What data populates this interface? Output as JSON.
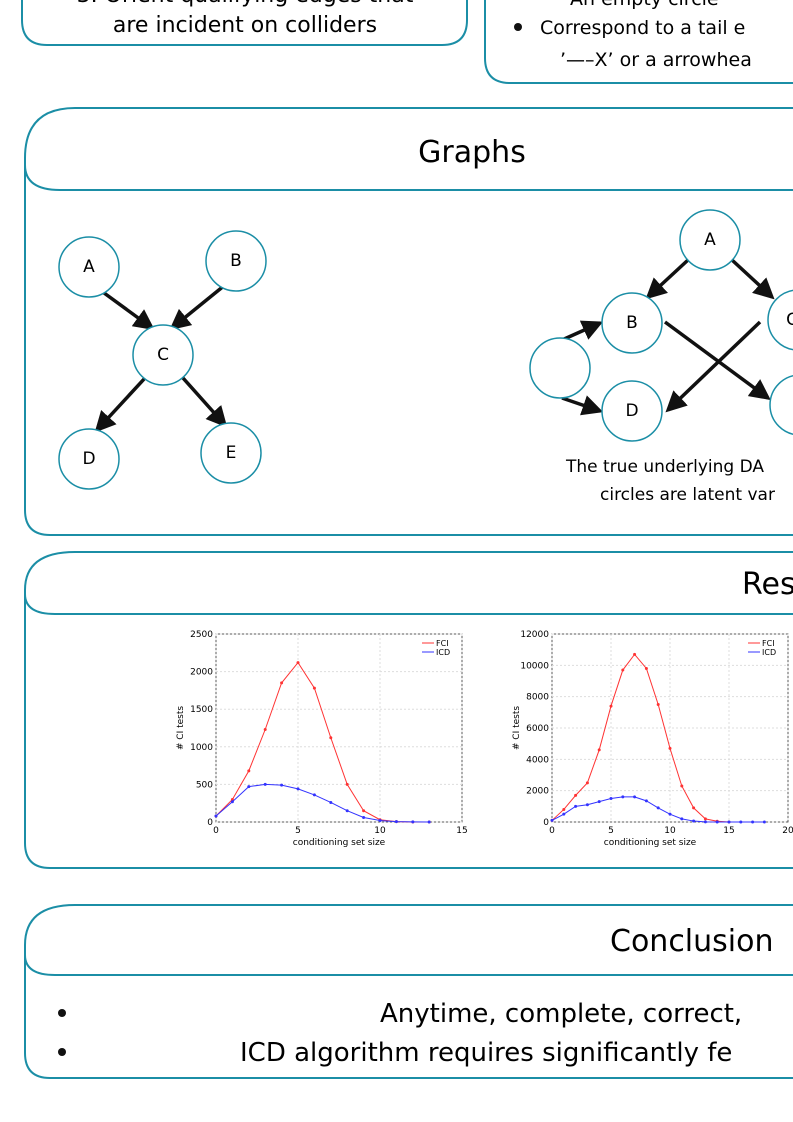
{
  "top": {
    "left_lines": [
      "3. Orient qualifying edges that",
      "are incident on colliders"
    ],
    "right_lines": [
      "An empty circle",
      "Correspond to a tail e",
      "’—–X’ or a arrowhea"
    ]
  },
  "graphs": {
    "title": "Graphs",
    "left_nodes": [
      "A",
      "B",
      "C",
      "D",
      "E"
    ],
    "right_nodes": [
      "A",
      "B",
      "C",
      "D"
    ],
    "caption": [
      "The true underlying DA",
      "circles are latent var"
    ]
  },
  "results": {
    "title": "Res",
    "charts": [
      {
        "type": "line",
        "xlabel": "conditioning set size",
        "ylabel": "# CI tests",
        "xlim": [
          0,
          15
        ],
        "xticks": [
          0,
          5,
          10,
          15
        ],
        "ylim": [
          0,
          2500
        ],
        "yticks": [
          0,
          500,
          1000,
          1500,
          2000,
          2500
        ],
        "series": [
          {
            "name": "FCI",
            "color": "#ff3333",
            "x": [
              0,
              1,
              2,
              3,
              4,
              5,
              6,
              7,
              8,
              9,
              10,
              11,
              12,
              13
            ],
            "values": [
              80,
              300,
              680,
              1230,
              1850,
              2120,
              1780,
              1120,
              500,
              150,
              30,
              5,
              0,
              0
            ]
          },
          {
            "name": "ICD",
            "color": "#3333ff",
            "x": [
              0,
              1,
              2,
              3,
              4,
              5,
              6,
              7,
              8,
              9,
              10,
              11,
              12,
              13
            ],
            "values": [
              80,
              270,
              470,
              500,
              490,
              440,
              360,
              260,
              150,
              60,
              20,
              5,
              2,
              0
            ]
          }
        ]
      },
      {
        "type": "line",
        "xlabel": "conditioning set size",
        "ylabel": "# CI tests",
        "xlim": [
          0,
          20
        ],
        "xticks": [
          0,
          5,
          10,
          15,
          20
        ],
        "ylim": [
          0,
          12000
        ],
        "yticks": [
          0,
          2000,
          4000,
          6000,
          8000,
          10000,
          12000
        ],
        "series": [
          {
            "name": "FCI",
            "color": "#ff3333",
            "x": [
              0,
              1,
              2,
              3,
              4,
              5,
              6,
              7,
              8,
              9,
              10,
              11,
              12,
              13,
              14,
              15
            ],
            "values": [
              100,
              800,
              1700,
              2500,
              4600,
              7400,
              9700,
              10700,
              9800,
              7500,
              4700,
              2300,
              900,
              200,
              50,
              0
            ]
          },
          {
            "name": "ICD",
            "color": "#3333ff",
            "x": [
              0,
              1,
              2,
              3,
              4,
              5,
              6,
              7,
              8,
              9,
              10,
              11,
              12,
              13,
              14,
              15,
              16,
              17,
              18
            ],
            "values": [
              100,
              500,
              1000,
              1100,
              1300,
              1500,
              1600,
              1600,
              1350,
              900,
              500,
              200,
              60,
              10,
              0,
              0,
              0,
              0,
              0
            ]
          }
        ]
      }
    ]
  },
  "conclusion": {
    "title": "Conclusion",
    "bullets": [
      "Anytime, complete, correct,",
      "ICD algorithm requires significantly fe"
    ]
  }
}
